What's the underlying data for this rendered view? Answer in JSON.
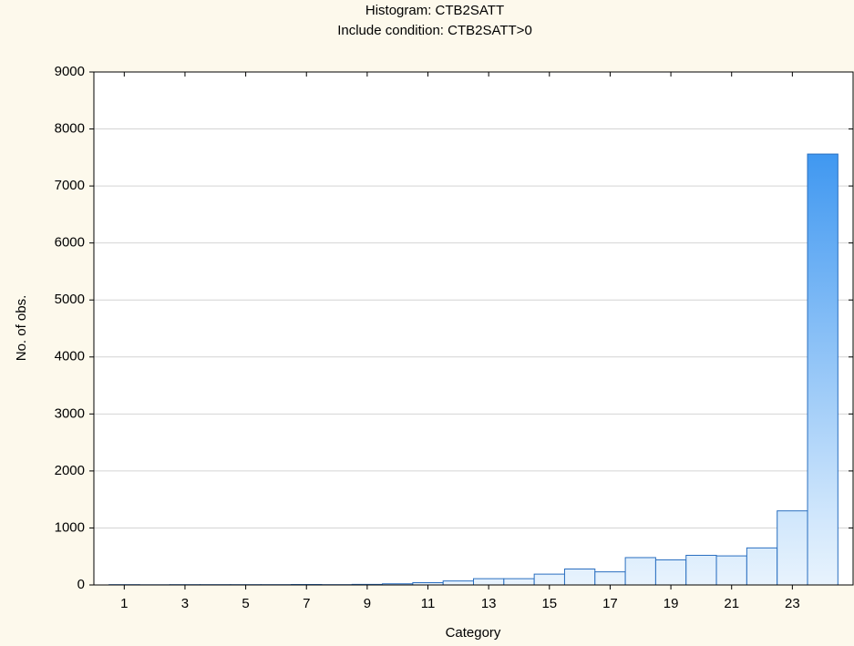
{
  "chart_data": {
    "type": "bar",
    "title": "Histogram: CTB2SATT",
    "subtitle": "Include condition: CTB2SATT>0",
    "x_label": "Category",
    "y_label": "No. of obs.",
    "categories": [
      "1",
      null,
      "3",
      null,
      "5",
      null,
      "7",
      null,
      "9",
      null,
      "11",
      null,
      "13",
      null,
      "15",
      null,
      "17",
      null,
      "19",
      null,
      "21",
      null,
      "23",
      null
    ],
    "values": [
      5,
      3,
      5,
      5,
      5,
      5,
      8,
      5,
      10,
      20,
      40,
      70,
      110,
      110,
      190,
      280,
      230,
      480,
      440,
      520,
      510,
      650,
      1300,
      7560
    ],
    "color": "#2a8cf0",
    "ylim": [
      0,
      9000
    ],
    "yticks": [
      0,
      1000,
      2000,
      3000,
      4000,
      5000,
      6000,
      7000,
      8000,
      9000
    ],
    "grid": true
  }
}
